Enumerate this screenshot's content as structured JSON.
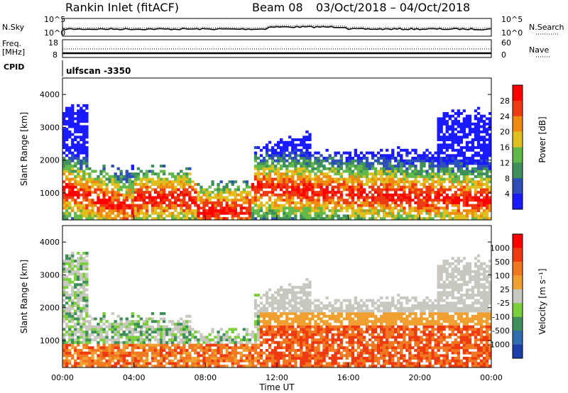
{
  "header": {
    "station": "Rankin Inlet (fitACF)",
    "beam": "Beam 08",
    "date_range": "03/Oct/2018 – 04/Oct/2018",
    "cpid_label": "CPID",
    "cpid_value": "ulfscan -3350"
  },
  "chart_data": [
    {
      "type": "line",
      "panel": "noise",
      "left_label": "N.Sky",
      "right_label": "N.Search",
      "left_ticks": [
        "10^5",
        "10^0"
      ],
      "right_ticks": [
        "10^5",
        "10^0"
      ]
    },
    {
      "type": "line",
      "panel": "frequency",
      "left_label": "Freq. [MHz]",
      "right_label": "Nave",
      "left_ticks": [
        "18",
        "8"
      ],
      "right_ticks": [
        "60",
        "0"
      ]
    },
    {
      "type": "heatmap",
      "panel": "power",
      "ylabel": "Slant Range [km]",
      "ylim": [
        180,
        4500
      ],
      "yticks": [
        1000,
        2000,
        3000,
        4000
      ],
      "xlim": [
        0,
        24
      ],
      "colorbar_label": "Power [dB]",
      "colorbar_ticks": [
        "4",
        "8",
        "12",
        "16",
        "20",
        "24",
        "28"
      ],
      "colors": [
        "#1a1aff",
        "#2e4fb8",
        "#3e8f5a",
        "#63b84a",
        "#e0c020",
        "#f08a10",
        "#ee3a10",
        "#ff0000"
      ]
    },
    {
      "type": "heatmap",
      "panel": "velocity",
      "ylabel": "Slant Range [km]",
      "ylim": [
        180,
        4500
      ],
      "yticks": [
        1000,
        2000,
        3000,
        4000
      ],
      "xlim": [
        0,
        24
      ],
      "xlabel": "Time UT",
      "xticks": [
        "00:00",
        "04:00",
        "08:00",
        "12:00",
        "16:00",
        "20:00",
        "00:00"
      ],
      "colorbar_label": "Velocity [m s⁻¹]",
      "colorbar_ticks": [
        "1000",
        "500",
        "100",
        "25",
        "-25",
        "-100",
        "-500",
        "-1000"
      ],
      "colors": [
        "#1a3ea8",
        "#2f6db0",
        "#3e8f5a",
        "#7ccf3c",
        "#c8c8c0",
        "#f0a030",
        "#f07820",
        "#ee3a10",
        "#ff0000"
      ]
    }
  ]
}
